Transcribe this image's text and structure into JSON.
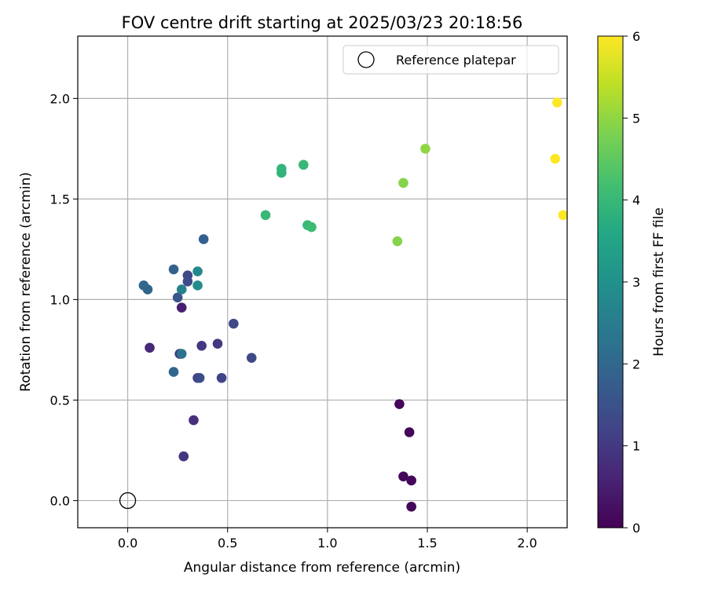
{
  "chart_data": {
    "type": "scatter",
    "title": "FOV centre drift starting at 2025/03/23 20:18:56",
    "xlabel": "Angular distance from reference (arcmin)",
    "ylabel": "Rotation from reference (arcmin)",
    "xlim": [
      -0.25,
      2.2
    ],
    "ylim": [
      -0.135,
      2.31
    ],
    "xticks": [
      "0.0",
      "0.5",
      "1.0",
      "1.5",
      "2.0"
    ],
    "yticks": [
      "0.0",
      "0.5",
      "1.0",
      "1.5",
      "2.0"
    ],
    "grid": true,
    "legend": {
      "position": "top-right",
      "entries": [
        "Reference platepar"
      ]
    },
    "reference_point": {
      "x": 0.0,
      "y": 0.0,
      "label": "Reference platepar"
    },
    "colorbar": {
      "label": "Hours from first FF file",
      "range": [
        0,
        6
      ],
      "ticks": [
        "0",
        "1",
        "2",
        "3",
        "4",
        "5",
        "6"
      ],
      "colormap": "viridis"
    },
    "points": [
      {
        "x": 1.36,
        "y": 0.48,
        "h": 0.1
      },
      {
        "x": 1.41,
        "y": 0.34,
        "h": 0.1
      },
      {
        "x": 1.38,
        "y": 0.12,
        "h": 0.1
      },
      {
        "x": 1.42,
        "y": 0.1,
        "h": 0.1
      },
      {
        "x": 1.42,
        "y": -0.03,
        "h": 0.1
      },
      {
        "x": 0.27,
        "y": 0.96,
        "h": 0.5
      },
      {
        "x": 0.11,
        "y": 0.76,
        "h": 0.7
      },
      {
        "x": 0.33,
        "y": 0.4,
        "h": 0.8
      },
      {
        "x": 0.28,
        "y": 0.22,
        "h": 0.9
      },
      {
        "x": 0.37,
        "y": 0.77,
        "h": 1.0
      },
      {
        "x": 0.45,
        "y": 0.78,
        "h": 1.0
      },
      {
        "x": 0.26,
        "y": 0.73,
        "h": 1.0
      },
      {
        "x": 0.35,
        "y": 0.61,
        "h": 1.1
      },
      {
        "x": 0.47,
        "y": 0.61,
        "h": 1.2
      },
      {
        "x": 0.53,
        "y": 0.88,
        "h": 1.3
      },
      {
        "x": 0.62,
        "y": 0.71,
        "h": 1.3
      },
      {
        "x": 0.3,
        "y": 1.12,
        "h": 1.3
      },
      {
        "x": 0.3,
        "y": 1.09,
        "h": 1.4
      },
      {
        "x": 0.36,
        "y": 0.61,
        "h": 1.4
      },
      {
        "x": 0.25,
        "y": 1.01,
        "h": 1.6
      },
      {
        "x": 0.38,
        "y": 1.3,
        "h": 1.8
      },
      {
        "x": 0.23,
        "y": 1.15,
        "h": 1.9
      },
      {
        "x": 0.1,
        "y": 1.05,
        "h": 2.0
      },
      {
        "x": 0.08,
        "y": 1.07,
        "h": 2.0
      },
      {
        "x": 0.23,
        "y": 0.64,
        "h": 2.0
      },
      {
        "x": 0.27,
        "y": 0.73,
        "h": 2.3
      },
      {
        "x": 0.27,
        "y": 1.05,
        "h": 2.6
      },
      {
        "x": 0.35,
        "y": 1.14,
        "h": 2.8
      },
      {
        "x": 0.35,
        "y": 1.07,
        "h": 2.9
      },
      {
        "x": 0.69,
        "y": 1.42,
        "h": 4.0
      },
      {
        "x": 0.77,
        "y": 1.65,
        "h": 3.9
      },
      {
        "x": 0.77,
        "y": 1.63,
        "h": 3.9
      },
      {
        "x": 0.88,
        "y": 1.67,
        "h": 4.0
      },
      {
        "x": 0.9,
        "y": 1.37,
        "h": 4.0
      },
      {
        "x": 0.92,
        "y": 1.36,
        "h": 4.1
      },
      {
        "x": 1.35,
        "y": 1.29,
        "h": 4.9
      },
      {
        "x": 1.38,
        "y": 1.58,
        "h": 4.9
      },
      {
        "x": 1.49,
        "y": 1.75,
        "h": 5.0
      },
      {
        "x": 2.15,
        "y": 1.98,
        "h": 6.0
      },
      {
        "x": 2.14,
        "y": 1.7,
        "h": 6.0
      },
      {
        "x": 2.18,
        "y": 1.42,
        "h": 6.0
      }
    ]
  }
}
